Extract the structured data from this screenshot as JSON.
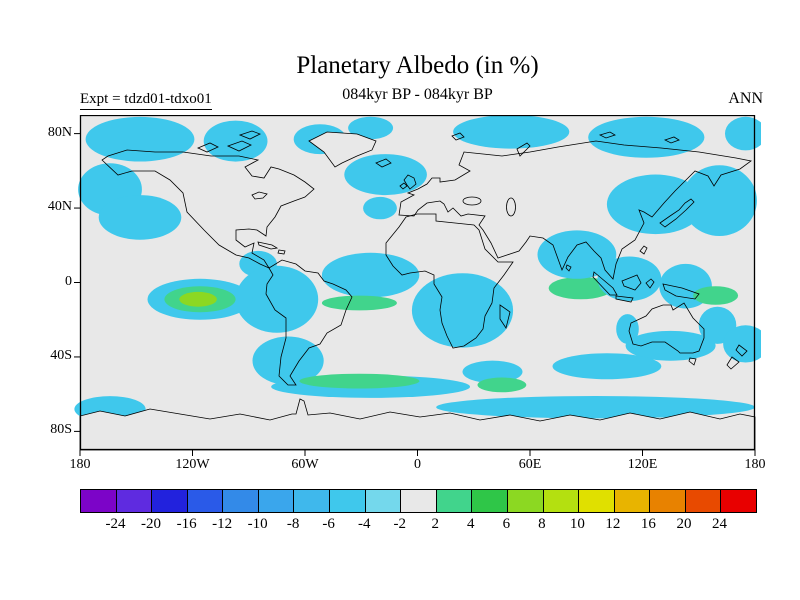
{
  "header": {
    "title": "Planetary Albedo (in %)",
    "subtitle": "084kyr BP - 084kyr BP",
    "experiment_label": "Expt = tdzd01-tdxo01",
    "season_label": "ANN"
  },
  "map": {
    "ocean_background_color": "#e8e8e8",
    "coastline_color": "#000000"
  },
  "chart_data": {
    "type": "filled_contour_map",
    "title": "Planetary Albedo (in %)",
    "subtitle": "084kyr BP - 084kyr BP",
    "experiment": "Expt = tdzd01-tdxo01",
    "season": "ANN",
    "units": "%",
    "projection": "equirectangular",
    "lon_range": [
      -180,
      180
    ],
    "lat_range": [
      -90,
      90
    ],
    "lat_tick_labels": [
      "80N",
      "40N",
      "0",
      "40S",
      "80S"
    ],
    "lon_tick_labels": [
      "180",
      "120W",
      "60W",
      "0",
      "60E",
      "120E",
      "180"
    ],
    "contour_levels": [
      -24,
      -20,
      -16,
      -12,
      -10,
      -8,
      -6,
      -4,
      -2,
      2,
      4,
      6,
      8,
      10,
      12,
      16,
      20,
      24
    ],
    "colorbar_labels": [
      "-24",
      "-20",
      "-16",
      "-12",
      "-10",
      "-8",
      "-6",
      "-4",
      "-2",
      "2",
      "4",
      "6",
      "8",
      "10",
      "12",
      "16",
      "20",
      "24"
    ],
    "palette": [
      "#7c04c8",
      "#5f2be0",
      "#2222dd",
      "#2a5ae8",
      "#338ae8",
      "#3aa6ec",
      "#3fb8ec",
      "#3fc8ec",
      "#74d8ec",
      "#e8e8e8",
      "#41d48c",
      "#2fc648",
      "#8cd822",
      "#b4e010",
      "#e0e000",
      "#e8b400",
      "#e88200",
      "#e84a00",
      "#e80000"
    ],
    "anomaly_regions": [
      {
        "lon": -148,
        "lat": 77,
        "rlon": 29,
        "rlat": 12,
        "value": -5
      },
      {
        "lon": -97,
        "lat": 76,
        "rlon": 17,
        "rlat": 11,
        "value": -5
      },
      {
        "lon": -52,
        "lat": 77,
        "rlon": 14,
        "rlat": 8,
        "value": -5
      },
      {
        "lon": -25,
        "lat": 83,
        "rlon": 12,
        "rlat": 6,
        "value": -5
      },
      {
        "lon": 50,
        "lat": 81,
        "rlon": 31,
        "rlat": 9,
        "value": -5
      },
      {
        "lon": 122,
        "lat": 78,
        "rlon": 31,
        "rlat": 11,
        "value": -5
      },
      {
        "lon": 175,
        "lat": 80,
        "rlon": 11,
        "rlat": 9,
        "value": -5
      },
      {
        "lon": -164,
        "lat": 50,
        "rlon": 17,
        "rlat": 14,
        "value": -5
      },
      {
        "lon": -148,
        "lat": 35,
        "rlon": 22,
        "rlat": 12,
        "value": -5
      },
      {
        "lon": -17,
        "lat": 58,
        "rlon": 22,
        "rlat": 11,
        "value": -5
      },
      {
        "lon": -20,
        "lat": 40,
        "rlon": 9,
        "rlat": 6,
        "value": -5
      },
      {
        "lon": -85,
        "lat": 10,
        "rlon": 10,
        "rlat": 7,
        "value": -5
      },
      {
        "lon": -75,
        "lat": -9,
        "rlon": 22,
        "rlat": 18,
        "value": -5
      },
      {
        "lon": -116,
        "lat": -9,
        "rlon": 28,
        "rlat": 11,
        "value": -5
      },
      {
        "lon": -116,
        "lat": -9,
        "rlon": 19,
        "rlat": 7,
        "value": 3
      },
      {
        "lon": -117,
        "lat": -9,
        "rlon": 10,
        "rlat": 4,
        "value": 7
      },
      {
        "lon": -25,
        "lat": 4,
        "rlon": 26,
        "rlat": 12,
        "value": -5
      },
      {
        "lon": -31,
        "lat": -11,
        "rlon": 20,
        "rlat": 4,
        "value": 3
      },
      {
        "lon": 24,
        "lat": -15,
        "rlon": 27,
        "rlat": 20,
        "value": -5
      },
      {
        "lon": 87,
        "lat": -3,
        "rlon": 17,
        "rlat": 6,
        "value": 3
      },
      {
        "lon": 85,
        "lat": 15,
        "rlon": 21,
        "rlat": 13,
        "value": -5
      },
      {
        "lon": 127,
        "lat": 42,
        "rlon": 26,
        "rlat": 16,
        "value": -5
      },
      {
        "lon": 161,
        "lat": 44,
        "rlon": 20,
        "rlat": 19,
        "value": -5
      },
      {
        "lon": 113,
        "lat": 2,
        "rlon": 17,
        "rlat": 12,
        "value": -5
      },
      {
        "lon": 143,
        "lat": -2,
        "rlon": 14,
        "rlat": 12,
        "value": -5
      },
      {
        "lon": 159,
        "lat": -7,
        "rlon": 12,
        "rlat": 5,
        "value": 3
      },
      {
        "lon": 112,
        "lat": -25,
        "rlon": 6,
        "rlat": 8,
        "value": -5
      },
      {
        "lon": 135,
        "lat": -34,
        "rlon": 24,
        "rlat": 8,
        "value": -5
      },
      {
        "lon": 160,
        "lat": -23,
        "rlon": 10,
        "rlat": 10,
        "value": -5
      },
      {
        "lon": -69,
        "lat": -42,
        "rlon": 19,
        "rlat": 13,
        "value": -5
      },
      {
        "lon": -25,
        "lat": -56,
        "rlon": 53,
        "rlat": 6,
        "value": -5
      },
      {
        "lon": -31,
        "lat": -53,
        "rlon": 32,
        "rlat": 4,
        "value": 3
      },
      {
        "lon": 40,
        "lat": -48,
        "rlon": 16,
        "rlat": 6,
        "value": -5
      },
      {
        "lon": 45,
        "lat": -55,
        "rlon": 13,
        "rlat": 4,
        "value": 3
      },
      {
        "lon": 95,
        "lat": -67,
        "rlon": 85,
        "rlat": 6,
        "value": -5
      },
      {
        "lon": 101,
        "lat": -45,
        "rlon": 29,
        "rlat": 7,
        "value": -5
      },
      {
        "lon": -164,
        "lat": -68,
        "rlon": 19,
        "rlat": 7,
        "value": -5
      },
      {
        "lon": 175,
        "lat": -33,
        "rlon": 12,
        "rlat": 10,
        "value": -5
      }
    ],
    "summary": "Albedo differences are mostly weak negatives (-6 to -2 %) over the Arctic, North Pacific, tropical oceans, southern Africa and the Southern Ocean, with scattered small positives (+2 to +8 %) in the eastern tropical Pacific, South Atlantic, Indian Ocean and Solomon Sea."
  }
}
